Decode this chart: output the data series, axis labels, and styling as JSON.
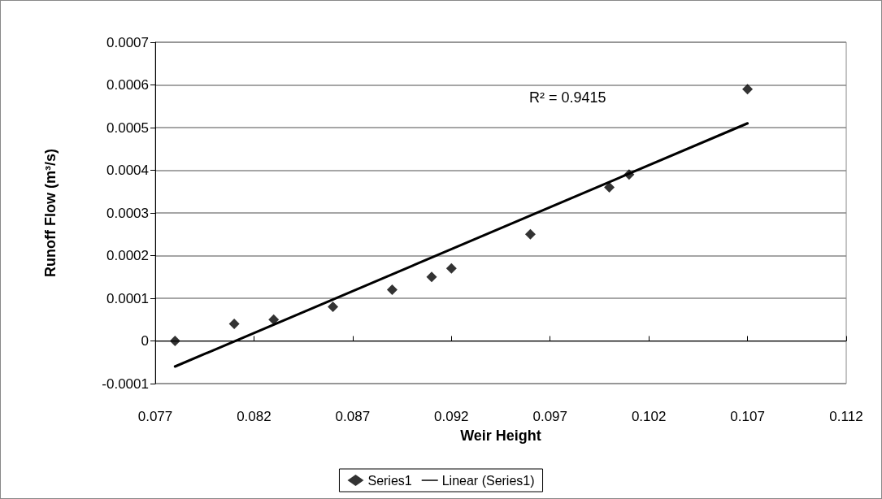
{
  "chart_data": {
    "type": "scatter",
    "xlabel": "Weir Height",
    "ylabel": "Runoff Flow (m³/s)",
    "xlim": [
      0.077,
      0.112
    ],
    "xticks": [
      0.077,
      0.082,
      0.087,
      0.092,
      0.097,
      0.102,
      0.107,
      0.112
    ],
    "ylim": [
      -0.0001,
      0.0007
    ],
    "yticks": [
      -0.0001,
      0,
      0.0001,
      0.0002,
      0.0003,
      0.0004,
      0.0005,
      0.0006,
      0.0007
    ],
    "grid": "y",
    "legend": "bottom",
    "marker": "diamond",
    "annotations": [
      "R² = 0.9415"
    ],
    "series": [
      {
        "name": "Series1",
        "color": "#000000",
        "x": [
          0.078,
          0.081,
          0.083,
          0.086,
          0.089,
          0.091,
          0.092,
          0.096,
          0.1,
          0.101,
          0.107
        ],
        "values": [
          0,
          4e-05,
          5e-05,
          8e-05,
          0.00012,
          0.00015,
          0.00017,
          0.00025,
          0.00036,
          0.00039,
          0.00059
        ]
      },
      {
        "name": "Linear (Series1)",
        "type": "line",
        "color": "#000000",
        "x": [
          0.078,
          0.107
        ],
        "values": [
          -6e-05,
          0.00051
        ],
        "marker": "none",
        "line_style": "solid"
      }
    ]
  }
}
